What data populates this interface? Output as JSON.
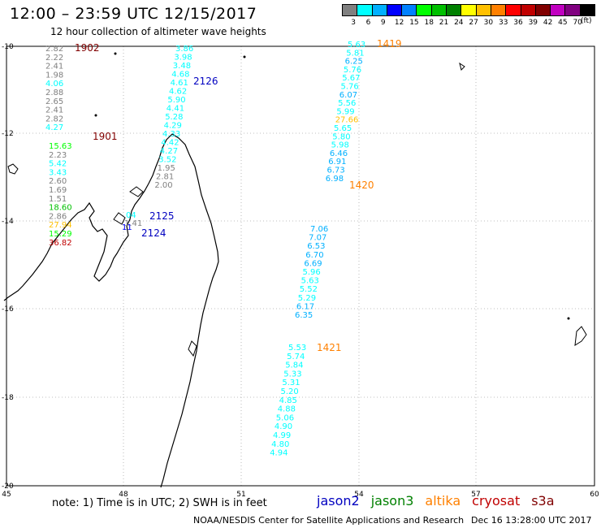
{
  "header": {
    "title": "12:00 – 23:59 UTC 12/15/2017",
    "subtitle": "12 hour collection of altimeter wave heights"
  },
  "legend": {
    "colors": [
      "#808080",
      "#00ffff",
      "#00b0ff",
      "#0000ff",
      "#0080ff",
      "#00ff00",
      "#00c000",
      "#008000",
      "#ffff00",
      "#ffc000",
      "#ff8000",
      "#ff0000",
      "#c00000",
      "#800000",
      "#c000c0",
      "#800080",
      "#000000"
    ],
    "labels": [
      "3",
      "6",
      "9",
      "12",
      "15",
      "18",
      "21",
      "24",
      "27",
      "30",
      "33",
      "36",
      "39",
      "42",
      "45",
      "70"
    ],
    "unit": "(ft)"
  },
  "axes": {
    "lat_labels": [
      "-10",
      "-12",
      "-14",
      "-16",
      "-18",
      "-20"
    ],
    "lon_labels": [
      "45",
      "48",
      "51",
      "54",
      "57",
      "60"
    ]
  },
  "tracks": [
    {
      "id": "1902",
      "color": "#800000",
      "values": [
        "2.82",
        "2.22",
        "2.41",
        "1.98",
        "4.06",
        "2.88",
        "2.65",
        "2.41",
        "2.82",
        "4.27"
      ]
    },
    {
      "id": "1901",
      "color": "#800000",
      "values": [
        "15.63",
        "2.23",
        "5.42",
        "3.43",
        "2.60",
        "1.69",
        "1.51",
        "18.60",
        "2.86",
        "27.94",
        "15.29",
        "36.82"
      ]
    },
    {
      "id": "2126",
      "color": "#0000c0",
      "values": [
        "3.86",
        "3.98",
        "3.48",
        "4.68",
        "4.61",
        "4.62",
        "5.90",
        "4.41",
        "5.28",
        "4.29",
        "4.33",
        "4.42",
        "4.27",
        "3.52",
        "1.95",
        "2.81",
        "2.00"
      ]
    },
    {
      "id": "2125",
      "color": "#0000c0",
      "values": [
        "04",
        "1.41"
      ]
    },
    {
      "id": "2124",
      "color": "#0000c0",
      "values": [
        "11"
      ]
    },
    {
      "id": "1419",
      "color": "#ff8000",
      "values": [
        "5.63",
        "5.81",
        "6.25",
        "5.76",
        "5.67",
        "5.76",
        "6.07",
        "5.56",
        "5.99",
        "27.66",
        "5.65",
        "5.80",
        "5.98",
        "6.46",
        "6.91",
        "6.73",
        "6.98"
      ]
    },
    {
      "id": "1420",
      "color": "#ff8000",
      "values": [
        "7.06",
        "7.07",
        "6.53",
        "6.70",
        "6.69",
        "5.96",
        "5.63",
        "5.52",
        "5.29",
        "6.17",
        "6.35"
      ]
    },
    {
      "id": "1421",
      "color": "#ff8000",
      "values": [
        "5.53",
        "5.74",
        "5.84",
        "5.33",
        "5.31",
        "5.20",
        "4.85",
        "4.88",
        "5.06",
        "4.90",
        "4.99",
        "4.80",
        "4.94"
      ]
    }
  ],
  "footer": {
    "note": "note: 1) Time is in UTC; 2) SWH is in feet",
    "satellites": [
      {
        "name": "jason2",
        "color": "#0000c0"
      },
      {
        "name": "jason3",
        "color": "#008000"
      },
      {
        "name": "altika",
        "color": "#ff8000"
      },
      {
        "name": "cryosat",
        "color": "#c00000"
      },
      {
        "name": "s3a",
        "color": "#800000"
      }
    ],
    "credit": "NOAA/NESDIS Center for Satellite Applications and Research",
    "timestamp": "Dec 16 13:28:00 UTC 2017"
  }
}
